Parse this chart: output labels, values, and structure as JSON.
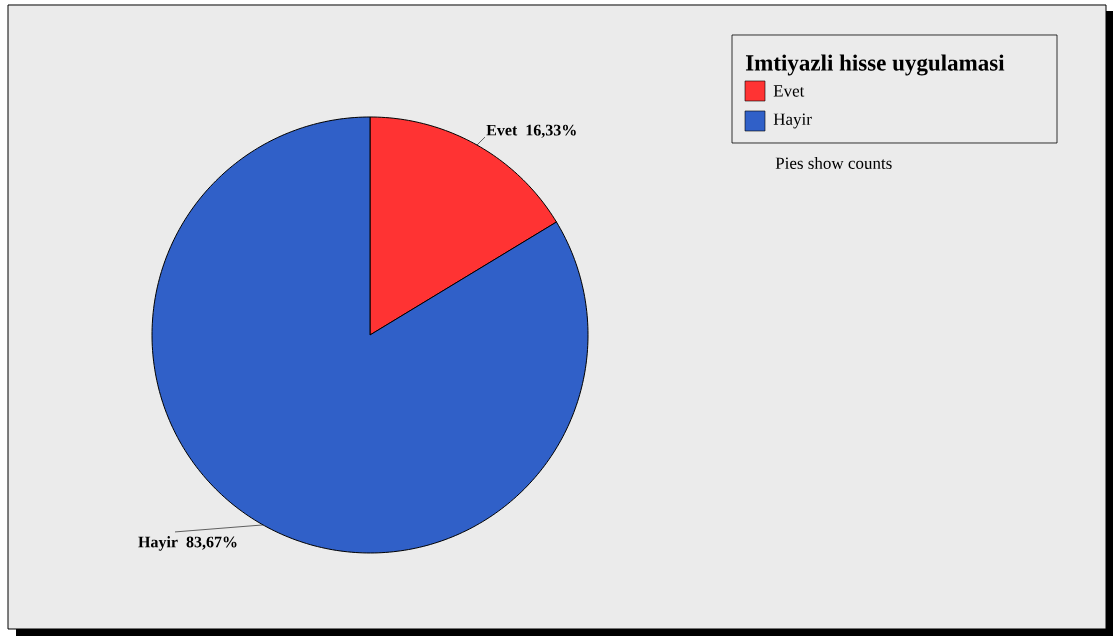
{
  "chart_data": {
    "type": "pie",
    "legend_title": "Imtiyazli hisse uygulamasi",
    "categories": [
      "Evet",
      "Hayir"
    ],
    "values": [
      16.33,
      83.67
    ],
    "value_labels": [
      "16,33%",
      "83,67%"
    ],
    "colors": [
      "#ff3333",
      "#3060c8"
    ],
    "legend": "top right",
    "annotations": [
      "Pies show counts"
    ]
  }
}
